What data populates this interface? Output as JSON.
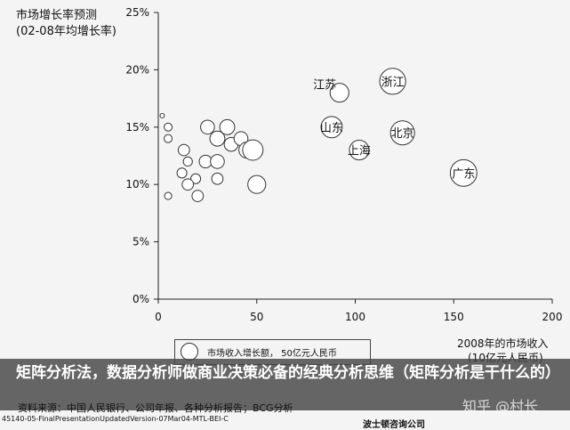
{
  "chart_data": {
    "type": "bubble",
    "title": "",
    "ylabel_lines": [
      "市场增长率预测",
      "(02-08年均增长率)"
    ],
    "xlabel_lines": [
      "2008年的市场收入",
      "(10亿元人民币)"
    ],
    "xlim": [
      0,
      200
    ],
    "ylim": [
      0,
      25
    ],
    "x_ticks": [
      "0",
      "50",
      "100",
      "150",
      "200"
    ],
    "y_ticks": [
      "0%",
      "5%",
      "10%",
      "15%",
      "20%",
      "25%"
    ],
    "grid": false,
    "legend": "市场收入增长额， 50亿元人民币",
    "legend_position": "bottom",
    "points": [
      {
        "label": "",
        "x": 2,
        "y": 16,
        "size": 0.3
      },
      {
        "label": "",
        "x": 5,
        "y": 15,
        "size": 1
      },
      {
        "label": "",
        "x": 5,
        "y": 14,
        "size": 1
      },
      {
        "label": "",
        "x": 5,
        "y": 9,
        "size": 0.8
      },
      {
        "label": "",
        "x": 13,
        "y": 13,
        "size": 2
      },
      {
        "label": "",
        "x": 12,
        "y": 11,
        "size": 1.5
      },
      {
        "label": "",
        "x": 15,
        "y": 12,
        "size": 1.3
      },
      {
        "label": "",
        "x": 19,
        "y": 10.5,
        "size": 1.5
      },
      {
        "label": "",
        "x": 20,
        "y": 9,
        "size": 2
      },
      {
        "label": "",
        "x": 15,
        "y": 10,
        "size": 2
      },
      {
        "label": "",
        "x": 30,
        "y": 10.5,
        "size": 2
      },
      {
        "label": "",
        "x": 24,
        "y": 12,
        "size": 2.5
      },
      {
        "label": "",
        "x": 25,
        "y": 15,
        "size": 3
      },
      {
        "label": "",
        "x": 35,
        "y": 15,
        "size": 3.5
      },
      {
        "label": "",
        "x": 30,
        "y": 14,
        "size": 3.5
      },
      {
        "label": "",
        "x": 30,
        "y": 12,
        "size": 3
      },
      {
        "label": "",
        "x": 37,
        "y": 13.5,
        "size": 3
      },
      {
        "label": "",
        "x": 42,
        "y": 14,
        "size": 3
      },
      {
        "label": "",
        "x": 45,
        "y": 13,
        "size": 4
      },
      {
        "label": "",
        "x": 50,
        "y": 10,
        "size": 5
      },
      {
        "label": "",
        "x": 48,
        "y": 13,
        "size": 6.5
      },
      {
        "label": "江苏",
        "x": 92,
        "y": 18,
        "size": 5.5,
        "label_pos": "left"
      },
      {
        "label": "上海",
        "x": 102,
        "y": 13,
        "size": 6,
        "label_pos": "center"
      },
      {
        "label": "山东",
        "x": 88,
        "y": 15,
        "size": 7,
        "label_pos": "center"
      },
      {
        "label": "北京",
        "x": 124,
        "y": 14.5,
        "size": 9,
        "label_pos": "center"
      },
      {
        "label": "浙江",
        "x": 119,
        "y": 19,
        "size": 10.5,
        "label_pos": "center"
      },
      {
        "label": "广东",
        "x": 155,
        "y": 11,
        "size": 11,
        "label_pos": "center"
      }
    ]
  },
  "caption": "矩阵分析法，数据分析师做商业决策必备的经典分析思维（矩阵分析是干什么的）",
  "watermark": "知乎 @村长",
  "source": "资料来源：中国人民银行、公司年报、各种分析报告；BCG分析",
  "footer_id": "45140-05-FinalPresentationUpdatedVersion-07Mar04-MTL-BEI-C",
  "footer_company": "波士顿咨询公司"
}
